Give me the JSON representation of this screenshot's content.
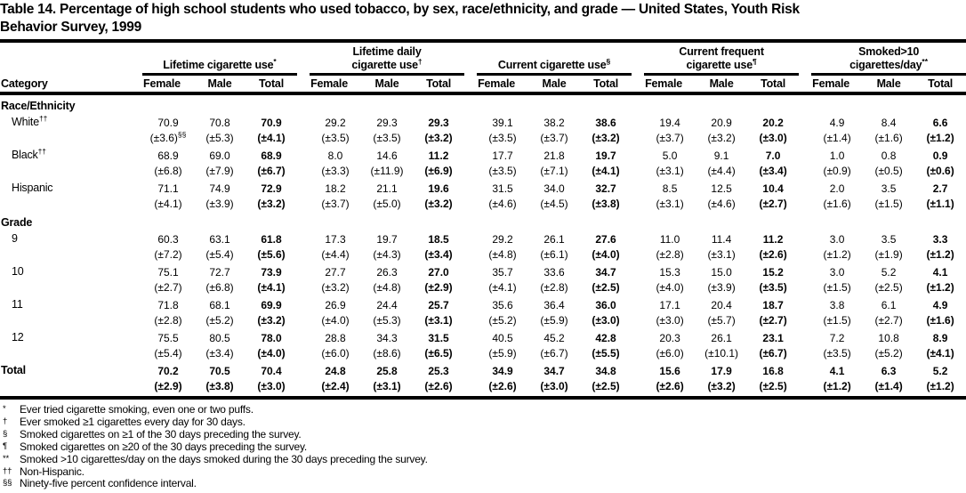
{
  "title": {
    "line1": "Table 14. Percentage of high school students who used tobacco, by sex, race/ethnicity, and grade — United States, Youth Risk",
    "line2": "Behavior Survey, 1999"
  },
  "table": {
    "category_header": "Category",
    "sub_headers": [
      "Female",
      "Male",
      "Total"
    ],
    "groups": [
      {
        "line1": "",
        "line2": "Lifetime cigarette use",
        "marker": "*"
      },
      {
        "line1": "Lifetime daily",
        "line2": "cigarette use",
        "marker": "†"
      },
      {
        "line1": "",
        "line2": "Current cigarette use",
        "marker": "§"
      },
      {
        "line1": "Current frequent",
        "line2": "cigarette use",
        "marker": "¶"
      },
      {
        "line1": "Smoked>10",
        "line2": "cigarettes/day",
        "marker": "**"
      }
    ],
    "rows": [
      {
        "type": "section",
        "label": "Race/Ethnicity"
      },
      {
        "type": "data",
        "category": "White",
        "category_marker": "††",
        "values": [
          "70.9",
          "70.8",
          "70.9",
          "29.2",
          "29.3",
          "29.3",
          "39.1",
          "38.2",
          "38.6",
          "19.4",
          "20.9",
          "20.2",
          "4.9",
          "8.4",
          "6.6"
        ],
        "ci": [
          "(±3.6)",
          "(±5.3)",
          "(±4.1)",
          "(±3.5)",
          "(±3.5)",
          "(±3.2)",
          "(±3.5)",
          "(±3.7)",
          "(±3.2)",
          "(±3.7)",
          "(±3.2)",
          "(±3.0)",
          "(±1.4)",
          "(±1.6)",
          "(±1.2)"
        ],
        "ci_markers": {
          "0": "§§"
        }
      },
      {
        "type": "data",
        "category": "Black",
        "category_marker": "††",
        "values": [
          "68.9",
          "69.0",
          "68.9",
          "8.0",
          "14.6",
          "11.2",
          "17.7",
          "21.8",
          "19.7",
          "5.0",
          "9.1",
          "7.0",
          "1.0",
          "0.8",
          "0.9"
        ],
        "ci": [
          "(±6.8)",
          "(±7.9)",
          "(±6.7)",
          "(±3.3)",
          "(±11.9)",
          "(±6.9)",
          "(±3.5)",
          "(±7.1)",
          "(±4.1)",
          "(±3.1)",
          "(±4.4)",
          "(±3.4)",
          "(±0.9)",
          "(±0.5)",
          "(±0.6)"
        ]
      },
      {
        "type": "data",
        "category": "Hispanic",
        "values": [
          "71.1",
          "74.9",
          "72.9",
          "18.2",
          "21.1",
          "19.6",
          "31.5",
          "34.0",
          "32.7",
          "8.5",
          "12.5",
          "10.4",
          "2.0",
          "3.5",
          "2.7"
        ],
        "ci": [
          "(±4.1)",
          "(±3.9)",
          "(±3.2)",
          "(±3.7)",
          "(±5.0)",
          "(±3.2)",
          "(±4.6)",
          "(±4.5)",
          "(±3.8)",
          "(±3.1)",
          "(±4.6)",
          "(±2.7)",
          "(±1.6)",
          "(±1.5)",
          "(±1.1)"
        ]
      },
      {
        "type": "section",
        "label": "Grade"
      },
      {
        "type": "data",
        "category": "9",
        "values": [
          "60.3",
          "63.1",
          "61.8",
          "17.3",
          "19.7",
          "18.5",
          "29.2",
          "26.1",
          "27.6",
          "11.0",
          "11.4",
          "11.2",
          "3.0",
          "3.5",
          "3.3"
        ],
        "ci": [
          "(±7.2)",
          "(±5.4)",
          "(±5.6)",
          "(±4.4)",
          "(±4.3)",
          "(±3.4)",
          "(±4.8)",
          "(±6.1)",
          "(±4.0)",
          "(±2.8)",
          "(±3.1)",
          "(±2.6)",
          "(±1.2)",
          "(±1.9)",
          "(±1.2)"
        ]
      },
      {
        "type": "data",
        "category": "10",
        "values": [
          "75.1",
          "72.7",
          "73.9",
          "27.7",
          "26.3",
          "27.0",
          "35.7",
          "33.6",
          "34.7",
          "15.3",
          "15.0",
          "15.2",
          "3.0",
          "5.2",
          "4.1"
        ],
        "ci": [
          "(±2.7)",
          "(±6.8)",
          "(±4.1)",
          "(±3.2)",
          "(±4.8)",
          "(±2.9)",
          "(±4.1)",
          "(±2.8)",
          "(±2.5)",
          "(±4.0)",
          "(±3.9)",
          "(±3.5)",
          "(±1.5)",
          "(±2.5)",
          "(±1.2)"
        ]
      },
      {
        "type": "data",
        "category": "11",
        "values": [
          "71.8",
          "68.1",
          "69.9",
          "26.9",
          "24.4",
          "25.7",
          "35.6",
          "36.4",
          "36.0",
          "17.1",
          "20.4",
          "18.7",
          "3.8",
          "6.1",
          "4.9"
        ],
        "ci": [
          "(±2.8)",
          "(±5.2)",
          "(±3.2)",
          "(±4.0)",
          "(±5.3)",
          "(±3.1)",
          "(±5.2)",
          "(±5.9)",
          "(±3.0)",
          "(±3.0)",
          "(±5.7)",
          "(±2.7)",
          "(±1.5)",
          "(±2.7)",
          "(±1.6)"
        ]
      },
      {
        "type": "data",
        "category": "12",
        "values": [
          "75.5",
          "80.5",
          "78.0",
          "28.8",
          "34.3",
          "31.5",
          "40.5",
          "45.2",
          "42.8",
          "20.3",
          "26.1",
          "23.1",
          "7.2",
          "10.8",
          "8.9"
        ],
        "ci": [
          "(±5.4)",
          "(±3.4)",
          "(±4.0)",
          "(±6.0)",
          "(±8.6)",
          "(±6.5)",
          "(±5.9)",
          "(±6.7)",
          "(±5.5)",
          "(±6.0)",
          "(±10.1)",
          "(±6.7)",
          "(±3.5)",
          "(±5.2)",
          "(±4.1)"
        ]
      },
      {
        "type": "data",
        "category": "Total",
        "total_row": true,
        "values": [
          "70.2",
          "70.5",
          "70.4",
          "24.8",
          "25.8",
          "25.3",
          "34.9",
          "34.7",
          "34.8",
          "15.6",
          "17.9",
          "16.8",
          "4.1",
          "6.3",
          "5.2"
        ],
        "ci": [
          "(±2.9)",
          "(±3.8)",
          "(±3.0)",
          "(±2.4)",
          "(±3.1)",
          "(±2.6)",
          "(±2.6)",
          "(±3.0)",
          "(±2.5)",
          "(±2.6)",
          "(±3.2)",
          "(±2.5)",
          "(±1.2)",
          "(±1.4)",
          "(±1.2)"
        ]
      }
    ]
  },
  "footnotes": [
    {
      "marker": "*",
      "text": "Ever tried cigarette smoking, even one or two puffs."
    },
    {
      "marker": "†",
      "text": "Ever smoked ≥1 cigarettes every day for 30 days."
    },
    {
      "marker": "§",
      "text": "Smoked cigarettes on ≥1 of the 30 days preceding the survey."
    },
    {
      "marker": "¶",
      "text": "Smoked cigarettes on ≥20 of the 30 days preceding the survey."
    },
    {
      "marker": "**",
      "text": "Smoked >10 cigarettes/day on the days smoked during the 30 days preceding the survey."
    },
    {
      "marker": "††",
      "text": "Non-Hispanic."
    },
    {
      "marker": "§§",
      "text": "Ninety-five percent confidence interval."
    }
  ]
}
